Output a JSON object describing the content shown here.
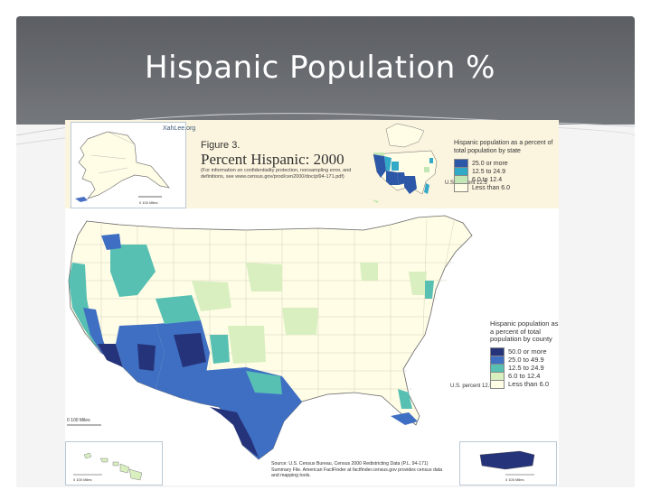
{
  "slide": {
    "title": "Hispanic Population %"
  },
  "figure": {
    "source_url": "XahLee.org",
    "label": "Figure 3.",
    "title": "Percent Hispanic: 2000",
    "note": "(For information on confidentiality protection, nonsampling error, and definitions, see www.census.gov/prod/cen2000/doc/pl94-171.pdf)",
    "state_legend": {
      "title": "Hispanic population as a percent of total population by state",
      "items": [
        {
          "label": "25.0 or more",
          "color": "#2d58a8"
        },
        {
          "label": "12.5 to 24.9",
          "color": "#33a9c8"
        },
        {
          "label": "6.0 to 12.4",
          "color": "#c4e6b4"
        },
        {
          "label": "Less than 6.0",
          "color": "#fffde6"
        }
      ],
      "us_percent": "U.S. percent 12.5"
    },
    "county_legend": {
      "title": "Hispanic population as a percent of total population by county",
      "items": [
        {
          "label": "50.0 or more",
          "color": "#25337a"
        },
        {
          "label": "25.0 to 49.9",
          "color": "#3f6fc3"
        },
        {
          "label": "12.5 to 24.9",
          "color": "#57c0b3"
        },
        {
          "label": "6.0 to 12.4",
          "color": "#d9efc0"
        },
        {
          "label": "Less than 6.0",
          "color": "#fffde6"
        }
      ],
      "us_percent": "U.S. percent 12.5"
    },
    "source_note": "Source: U.S. Census Bureau, Census 2000 Redistricting Data (P.L. 94-171) Summary File. American FactFinder at factfinder.census.gov provides census data and mapping tools.",
    "scale_alaska": "0 100 Miles",
    "scale_hawaii": "0 100 Miles",
    "scale_mainland": "0 100 Miles",
    "scale_pr": "0 100 Miles"
  }
}
